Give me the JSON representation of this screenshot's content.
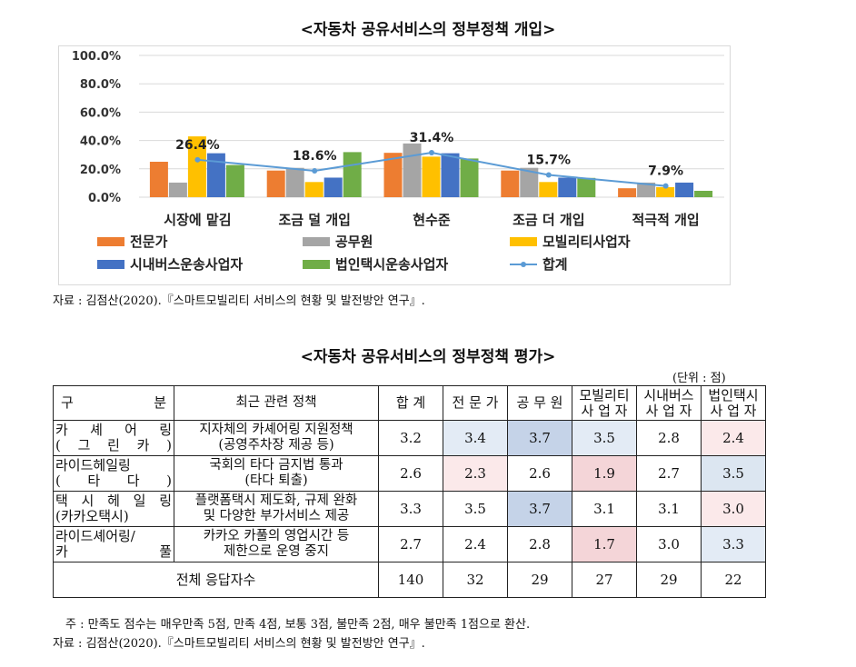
{
  "chart": {
    "title": "<자동차 공유서비스의 정부정책 개입>",
    "source": "자료 : 김점산(2020).『스마트모빌리티 서비스의 현황 및 발전방안 연구』."
  },
  "chart_data": {
    "type": "bar",
    "categories": [
      "시장에 맡김",
      "조금 덜 개입",
      "현수준",
      "조금 더 개입",
      "적극적 개입"
    ],
    "ylim": [
      0,
      100
    ],
    "yticks": [
      "0.0%",
      "20.0%",
      "40.0%",
      "60.0%",
      "80.0%",
      "100.0%"
    ],
    "series": [
      {
        "name": "전문가",
        "color": "#ed7d31",
        "values": [
          25.0,
          18.8,
          31.3,
          18.8,
          6.3
        ]
      },
      {
        "name": "공무원",
        "color": "#a5a5a5",
        "values": [
          10.3,
          20.7,
          37.9,
          20.7,
          10.3
        ]
      },
      {
        "name": "모빌리티사업자",
        "color": "#ffc000",
        "values": [
          42.9,
          10.7,
          28.6,
          10.7,
          7.1
        ]
      },
      {
        "name": "시내버스운송사업자",
        "color": "#4472c4",
        "values": [
          31.0,
          13.8,
          31.0,
          13.8,
          10.3
        ]
      },
      {
        "name": "법인택시운송사업자",
        "color": "#70ad47",
        "values": [
          22.7,
          31.8,
          27.3,
          13.6,
          4.5
        ]
      }
    ],
    "line": {
      "name": "합계",
      "color": "#5b9bd5",
      "values": [
        26.4,
        18.6,
        31.4,
        15.7,
        7.9
      ],
      "labels": [
        "26.4%",
        "18.6%",
        "31.4%",
        "15.7%",
        "7.9%"
      ]
    }
  },
  "table": {
    "title": "<자동차 공유서비스의 정부정책 평가>",
    "unit": "(단위 : 점)",
    "headers": {
      "category": "구 분",
      "policy": "최근 관련 정책",
      "total": "합 계",
      "expert": "전 문 가",
      "official": "공 무 원",
      "mobility_1": "모빌리티",
      "mobility_2": "사 업 자",
      "bus_1": "시내버스",
      "bus_2": "사 업 자",
      "taxi_1": "법인택시",
      "taxi_2": "사 업 자"
    },
    "rows": [
      {
        "cat1": "카 셰 어 링",
        "cat2": "( 그 린 카 )",
        "pol1": "지자체의 카셰어링 지원정책",
        "pol2": "(공영주차장 제공 등)",
        "values": [
          "3.2",
          "3.4",
          "3.7",
          "3.5",
          "2.8",
          "2.4"
        ]
      },
      {
        "cat1": "라이드헤일링",
        "cat2": "( 타 다 )",
        "pol1": "국회의 타다 금지법 통과",
        "pol2": "(타다 퇴출)",
        "values": [
          "2.6",
          "2.3",
          "2.6",
          "1.9",
          "2.7",
          "3.5"
        ]
      },
      {
        "cat1": "택 시 헤 일 링",
        "cat2": "(카카오택시)",
        "pol1": "플랫폼택시 제도화, 규제 완화",
        "pol2": "및 다양한 부가서비스 제공",
        "values": [
          "3.3",
          "3.5",
          "3.7",
          "3.1",
          "3.1",
          "3.0"
        ]
      },
      {
        "cat1": "라이드셰어링/",
        "cat2": "카 풀",
        "pol1": "카카오 카풀의 영업시간 등",
        "pol2": "제한으로 운영 중지",
        "values": [
          "2.7",
          "2.4",
          "2.8",
          "1.7",
          "3.0",
          "3.3"
        ]
      }
    ],
    "total_row": {
      "label": "전체 응답자수",
      "values": [
        "140",
        "32",
        "29",
        "27",
        "29",
        "22"
      ]
    },
    "note": "주 : 만족도 점수는 매우만족 5점, 만족 4점, 보통 3점, 불만족 2점, 매우 불만족 1점으로 환산.",
    "source": "자료 : 김점산(2020).『스마트모빌리티 서비스의 현황 및 발전방안 연구』."
  }
}
